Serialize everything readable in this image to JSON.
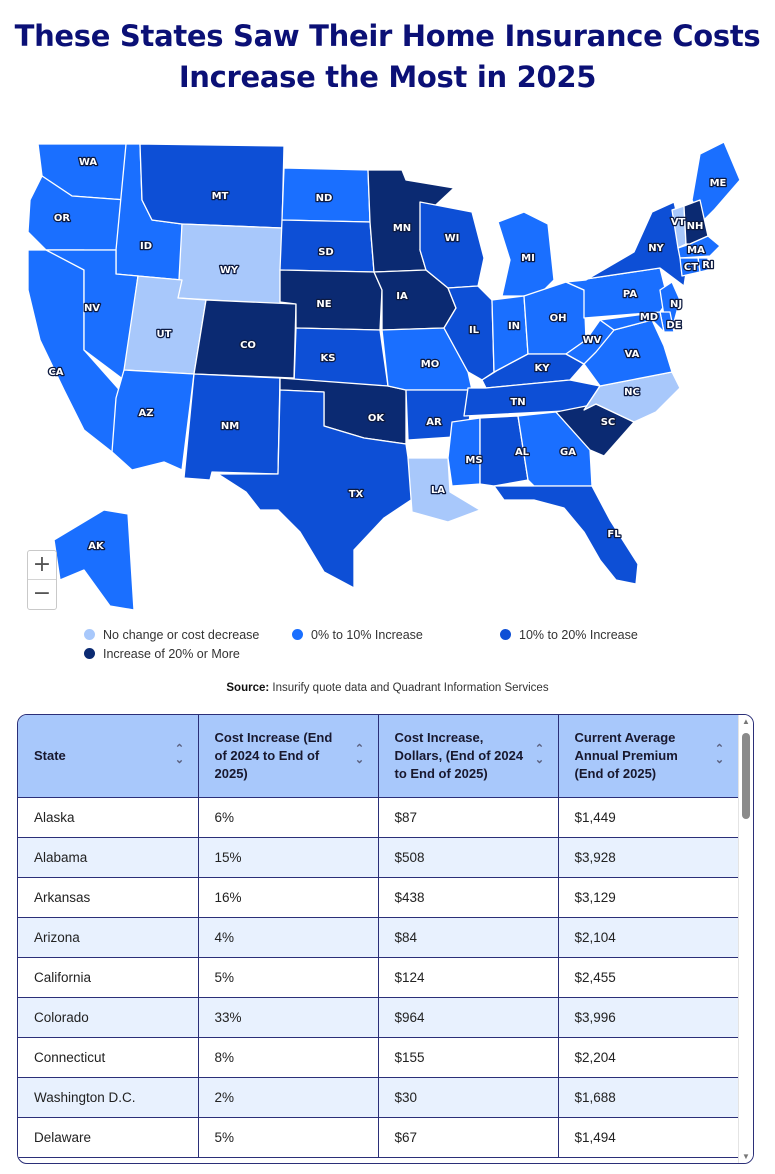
{
  "title": {
    "line1": "These States Saw Their Home Insurance Costs",
    "line2": "Increase the Most in 2025"
  },
  "colors": {
    "no_change": "#a8c8fb",
    "low": "#1a6fff",
    "mid": "#0d4fd6",
    "high": "#0b2a72"
  },
  "map": {
    "states": [
      {
        "abbr": "WA",
        "tier": "low"
      },
      {
        "abbr": "OR",
        "tier": "low"
      },
      {
        "abbr": "CA",
        "tier": "low"
      },
      {
        "abbr": "ID",
        "tier": "low"
      },
      {
        "abbr": "NV",
        "tier": "low"
      },
      {
        "abbr": "MT",
        "tier": "mid"
      },
      {
        "abbr": "WY",
        "tier": "no_change"
      },
      {
        "abbr": "UT",
        "tier": "no_change"
      },
      {
        "abbr": "CO",
        "tier": "high"
      },
      {
        "abbr": "AZ",
        "tier": "low"
      },
      {
        "abbr": "NM",
        "tier": "mid"
      },
      {
        "abbr": "ND",
        "tier": "low"
      },
      {
        "abbr": "SD",
        "tier": "mid"
      },
      {
        "abbr": "NE",
        "tier": "high"
      },
      {
        "abbr": "KS",
        "tier": "mid"
      },
      {
        "abbr": "OK",
        "tier": "high"
      },
      {
        "abbr": "TX",
        "tier": "mid"
      },
      {
        "abbr": "MN",
        "tier": "high"
      },
      {
        "abbr": "IA",
        "tier": "high"
      },
      {
        "abbr": "MO",
        "tier": "low"
      },
      {
        "abbr": "AR",
        "tier": "mid"
      },
      {
        "abbr": "LA",
        "tier": "no_change"
      },
      {
        "abbr": "WI",
        "tier": "mid"
      },
      {
        "abbr": "IL",
        "tier": "mid"
      },
      {
        "abbr": "MI",
        "tier": "low"
      },
      {
        "abbr": "IN",
        "tier": "low"
      },
      {
        "abbr": "OH",
        "tier": "low"
      },
      {
        "abbr": "KY",
        "tier": "mid"
      },
      {
        "abbr": "TN",
        "tier": "mid"
      },
      {
        "abbr": "MS",
        "tier": "low"
      },
      {
        "abbr": "AL",
        "tier": "mid"
      },
      {
        "abbr": "GA",
        "tier": "low"
      },
      {
        "abbr": "FL",
        "tier": "mid"
      },
      {
        "abbr": "SC",
        "tier": "high"
      },
      {
        "abbr": "NC",
        "tier": "no_change"
      },
      {
        "abbr": "VA",
        "tier": "low"
      },
      {
        "abbr": "WV",
        "tier": "low"
      },
      {
        "abbr": "PA",
        "tier": "low"
      },
      {
        "abbr": "NY",
        "tier": "mid"
      },
      {
        "abbr": "ME",
        "tier": "low"
      },
      {
        "abbr": "VT",
        "tier": "no_change"
      },
      {
        "abbr": "NH",
        "tier": "high"
      },
      {
        "abbr": "MA",
        "tier": "low"
      },
      {
        "abbr": "RI",
        "tier": "low"
      },
      {
        "abbr": "CT",
        "tier": "low"
      },
      {
        "abbr": "NJ",
        "tier": "low"
      },
      {
        "abbr": "DE",
        "tier": "low"
      },
      {
        "abbr": "MD",
        "tier": "low"
      },
      {
        "abbr": "AK",
        "tier": "low"
      }
    ],
    "zoom_in": "+",
    "zoom_out": "−"
  },
  "legend": [
    {
      "label": "No change or cost decrease",
      "color": "#a8c8fb"
    },
    {
      "label": "0% to 10% Increase",
      "color": "#1a6fff"
    },
    {
      "label": "10% to 20% Increase",
      "color": "#0d4fd6"
    },
    {
      "label": "Increase of 20% or More",
      "color": "#0b2a72"
    }
  ],
  "source": {
    "label": "Source:",
    "text": "Insurify quote data and Quadrant Information Services"
  },
  "table": {
    "headers": [
      "State",
      "Cost Increase (End of 2024 to End of 2025)",
      "Cost Increase, Dollars, (End of 2024 to End of 2025)",
      "Current Average Annual Premium (End of 2025)"
    ],
    "rows": [
      [
        "Alaska",
        "6%",
        "$87",
        "$1,449"
      ],
      [
        "Alabama",
        "15%",
        "$508",
        "$3,928"
      ],
      [
        "Arkansas",
        "16%",
        "$438",
        "$3,129"
      ],
      [
        "Arizona",
        "4%",
        "$84",
        "$2,104"
      ],
      [
        "California",
        "5%",
        "$124",
        "$2,455"
      ],
      [
        "Colorado",
        "33%",
        "$964",
        "$3,996"
      ],
      [
        "Connecticut",
        "8%",
        "$155",
        "$2,204"
      ],
      [
        "Washington D.C.",
        "2%",
        "$30",
        "$1,688"
      ],
      [
        "Delaware",
        "5%",
        "$67",
        "$1,494"
      ]
    ]
  }
}
